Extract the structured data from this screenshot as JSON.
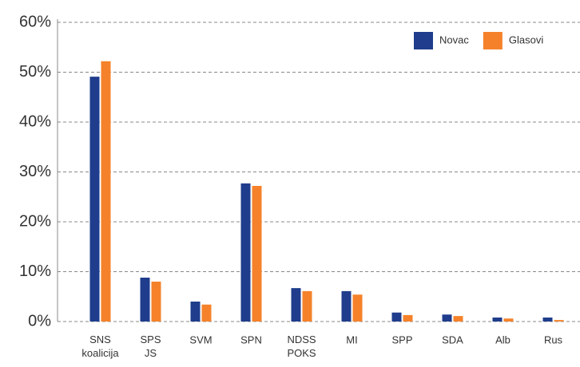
{
  "chart_data": {
    "type": "bar",
    "categories": [
      "SNS koalicija",
      "SPS JS",
      "SVM",
      "SPN",
      "NDSS POKS",
      "MI",
      "SPP",
      "SDA",
      "Alb",
      "Rus"
    ],
    "series": [
      {
        "name": "Novac",
        "color": "#1f3d8c",
        "values": [
          49.1,
          8.8,
          4.0,
          27.7,
          6.7,
          6.1,
          1.8,
          1.4,
          0.8,
          0.8
        ]
      },
      {
        "name": "Glasovi",
        "color": "#f5822a",
        "values": [
          52.2,
          8.0,
          3.4,
          27.2,
          6.1,
          5.4,
          1.3,
          1.1,
          0.6,
          0.3
        ]
      }
    ],
    "ylim": [
      0,
      60
    ],
    "yticks": [
      {
        "value": 0,
        "label": "0%"
      },
      {
        "value": 10,
        "label": "10%"
      },
      {
        "value": 20,
        "label": "20%"
      },
      {
        "value": 30,
        "label": "30%"
      },
      {
        "value": 40,
        "label": "40%"
      },
      {
        "value": 50,
        "label": "50%"
      },
      {
        "value": 60,
        "label": "60%"
      }
    ],
    "grid": true,
    "legend": "top-right"
  }
}
